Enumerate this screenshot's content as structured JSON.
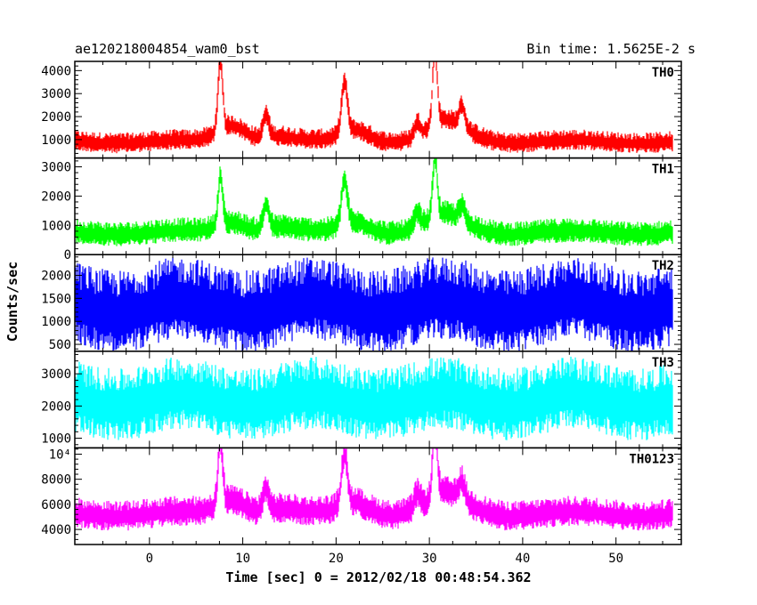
{
  "chart_data": {
    "type": "line",
    "title_left": "ae120218004854_wam0_bst",
    "title_right": "Bin time: 1.5625E-2 s",
    "xlabel": "Time [sec] 0 = 2012/02/18 00:48:54.362",
    "ylabel": "Counts/sec",
    "xlim": [
      -8,
      57
    ],
    "x_ticks": [
      0,
      10,
      20,
      30,
      40,
      50
    ],
    "x_tick_labels": [
      "0",
      "10",
      "20",
      "30",
      "40",
      "50"
    ],
    "x_data_range": [
      -8,
      56
    ],
    "peaks_x": [
      7.6,
      12.5,
      20.9,
      28.7,
      30.6,
      33.5
    ],
    "panels": [
      {
        "name": "TH0",
        "color": "#ff0000",
        "ylim": [
          200,
          4400
        ],
        "y_ticks": [
          1000,
          2000,
          3000,
          4000
        ],
        "y_tick_labels": [
          "1000",
          "2000",
          "3000",
          "4000"
        ],
        "baseline": 900,
        "noise": 300,
        "peak_amps": [
          3000,
          1000,
          2200,
          600,
          3200,
          900
        ]
      },
      {
        "name": "TH1",
        "color": "#00ff00",
        "ylim": [
          0,
          3300
        ],
        "y_ticks": [
          0,
          1000,
          2000,
          3000
        ],
        "y_tick_labels": [
          "0",
          "1000",
          "2000",
          "3000"
        ],
        "baseline": 750,
        "noise": 280,
        "peak_amps": [
          1600,
          800,
          1500,
          500,
          2000,
          500
        ]
      },
      {
        "name": "TH2",
        "color": "#0000ff",
        "ylim": [
          350,
          2450
        ],
        "y_ticks": [
          500,
          1000,
          1500,
          2000
        ],
        "y_tick_labels": [
          "500",
          "1000",
          "1500",
          "2000"
        ],
        "baseline": 1300,
        "noise": 600,
        "peak_amps": [
          0,
          0,
          0,
          0,
          0,
          0
        ]
      },
      {
        "name": "TH3",
        "color": "#00ffff",
        "ylim": [
          700,
          3700
        ],
        "y_ticks": [
          1000,
          2000,
          3000
        ],
        "y_tick_labels": [
          "1000",
          "2000",
          "3000"
        ],
        "baseline": 2150,
        "noise": 750,
        "peak_amps": [
          0,
          0,
          0,
          0,
          0,
          0
        ]
      },
      {
        "name": "TH0123",
        "color": "#ff00ff",
        "ylim": [
          2800,
          10500
        ],
        "y_ticks": [
          4000,
          6000,
          8000,
          10000
        ],
        "y_tick_labels": [
          "4000",
          "6000",
          "8000",
          "10⁴"
        ],
        "baseline": 5200,
        "noise": 800,
        "peak_amps": [
          5000,
          1800,
          4000,
          1200,
          5500,
          1500
        ]
      }
    ]
  }
}
